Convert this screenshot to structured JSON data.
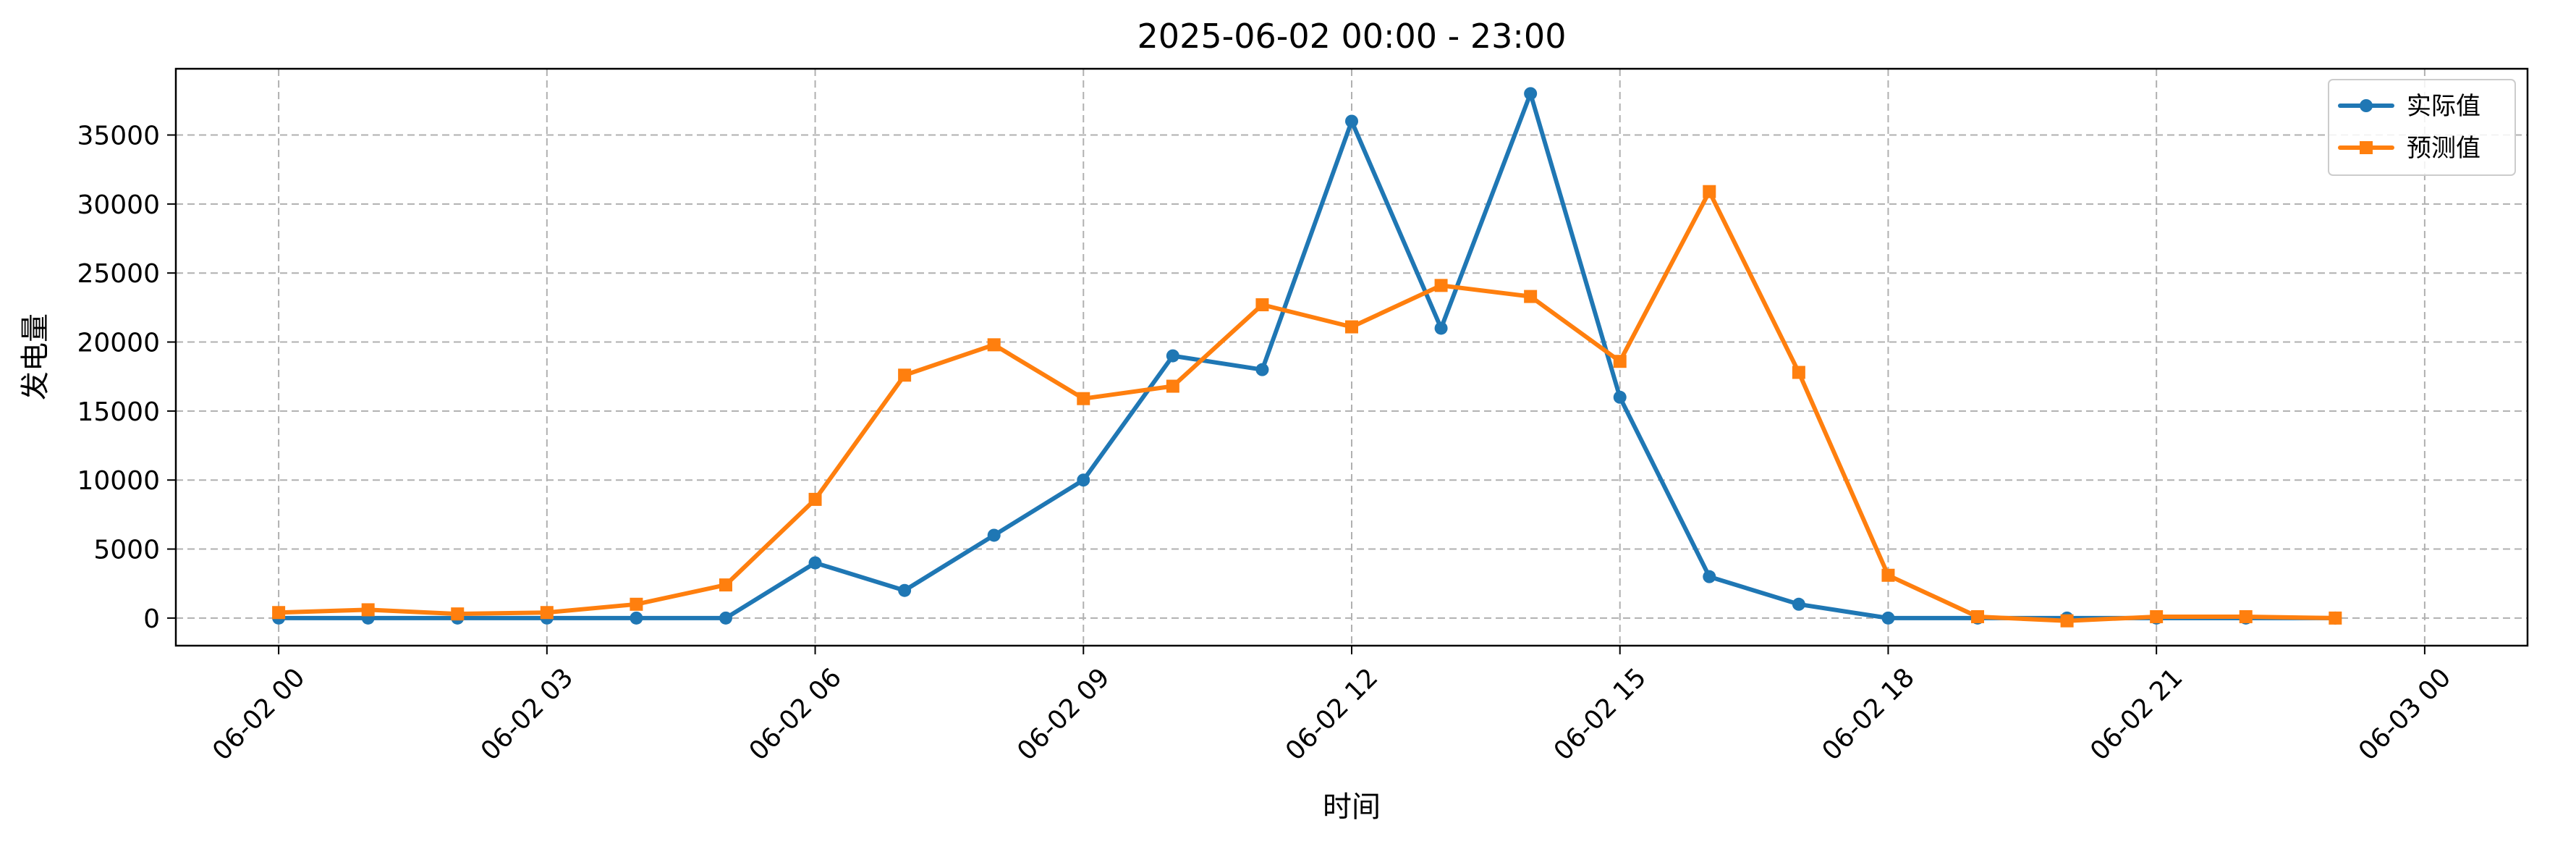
{
  "chart_data": {
    "type": "line",
    "title": "2025-06-02 00:00 - 23:00",
    "xlabel": "时间",
    "ylabel": "发电量",
    "x": [
      "00:00",
      "01:00",
      "02:00",
      "03:00",
      "04:00",
      "05:00",
      "06:00",
      "07:00",
      "08:00",
      "09:00",
      "10:00",
      "11:00",
      "12:00",
      "13:00",
      "14:00",
      "15:00",
      "16:00",
      "17:00",
      "18:00",
      "19:00",
      "20:00",
      "21:00",
      "22:00",
      "23:00"
    ],
    "xlim_hours": [
      -1.15,
      25.15
    ],
    "ylim": [
      -2000,
      39800
    ],
    "x_ticks": [
      {
        "hour": 0,
        "label": "06-02 00"
      },
      {
        "hour": 3,
        "label": "06-02 03"
      },
      {
        "hour": 6,
        "label": "06-02 06"
      },
      {
        "hour": 9,
        "label": "06-02 09"
      },
      {
        "hour": 12,
        "label": "06-02 12"
      },
      {
        "hour": 15,
        "label": "06-02 15"
      },
      {
        "hour": 18,
        "label": "06-02 18"
      },
      {
        "hour": 21,
        "label": "06-02 21"
      },
      {
        "hour": 24,
        "label": "06-03 00"
      }
    ],
    "y_ticks": [
      0,
      5000,
      10000,
      15000,
      20000,
      25000,
      30000,
      35000
    ],
    "grid": true,
    "legend_position": "upper right",
    "series": [
      {
        "name": "实际值",
        "color": "#1f77b4",
        "marker": "circle",
        "values": [
          0,
          0,
          0,
          0,
          0,
          0,
          4000,
          2000,
          6000,
          10000,
          19000,
          18000,
          36000,
          21000,
          38000,
          16000,
          3000,
          1000,
          0,
          0,
          0,
          0,
          0,
          0
        ]
      },
      {
        "name": "预测值",
        "color": "#ff7f0e",
        "marker": "square",
        "values": [
          400,
          600,
          300,
          400,
          1000,
          2400,
          8600,
          17600,
          19800,
          15900,
          16800,
          22700,
          21100,
          24100,
          23300,
          18600,
          30900,
          17800,
          3100,
          100,
          -200,
          100,
          100,
          0
        ]
      }
    ]
  }
}
